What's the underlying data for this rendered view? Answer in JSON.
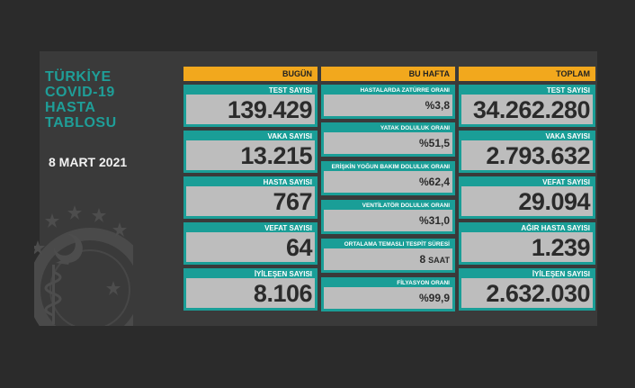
{
  "sidebar": {
    "title_lines": [
      "TÜRKİYE",
      "COVID-19",
      "HASTA",
      "TABLOSU"
    ],
    "date": "8 MART 2021"
  },
  "columns": {
    "today": "BUGÜN",
    "this_week": "BU HAFTA",
    "total": "TOPLAM"
  },
  "today": [
    {
      "label": "TEST SAYISI",
      "value": "139.429"
    },
    {
      "label": "VAKA SAYISI",
      "value": "13.215"
    },
    {
      "label": "HASTA SAYISI",
      "value": "767"
    },
    {
      "label": "VEFAT SAYISI",
      "value": "64"
    },
    {
      "label": "İYİLEŞEN SAYISI",
      "value": "8.106"
    }
  ],
  "week": [
    {
      "label": "HASTALARDA ZATÜRRE ORANI",
      "value": "%3,8"
    },
    {
      "label": "YATAK DOLULUK ORANI",
      "value": "%51,5"
    },
    {
      "label": "ERİŞKİN YOĞUN BAKIM DOLULUK ORANI",
      "value": "%62,4"
    },
    {
      "label": "VENTİLATÖR DOLULUK ORANI",
      "value": "%31,0"
    },
    {
      "label": "ORTALAMA TEMASLI TESPİT SÜRESİ",
      "value": "8",
      "unit": "SAAT"
    },
    {
      "label": "FİLYASYON ORANI",
      "value": "%99,9"
    }
  ],
  "total": [
    {
      "label": "TEST SAYISI",
      "value": "34.262.280"
    },
    {
      "label": "VAKA SAYISI",
      "value": "2.793.632"
    },
    {
      "label": "VEFAT SAYISI",
      "value": "29.094"
    },
    {
      "label": "AĞIR HASTA SAYISI",
      "value": "1.239"
    },
    {
      "label": "İYİLEŞEN SAYISI",
      "value": "2.632.030"
    }
  ],
  "colors": {
    "accent_teal": "#1a9e97",
    "header_orange": "#f2a81d",
    "value_bg": "#bdbdbd",
    "panel_bg": "#3a3a3a"
  },
  "icons": [
    "ministry-seal-icon"
  ]
}
